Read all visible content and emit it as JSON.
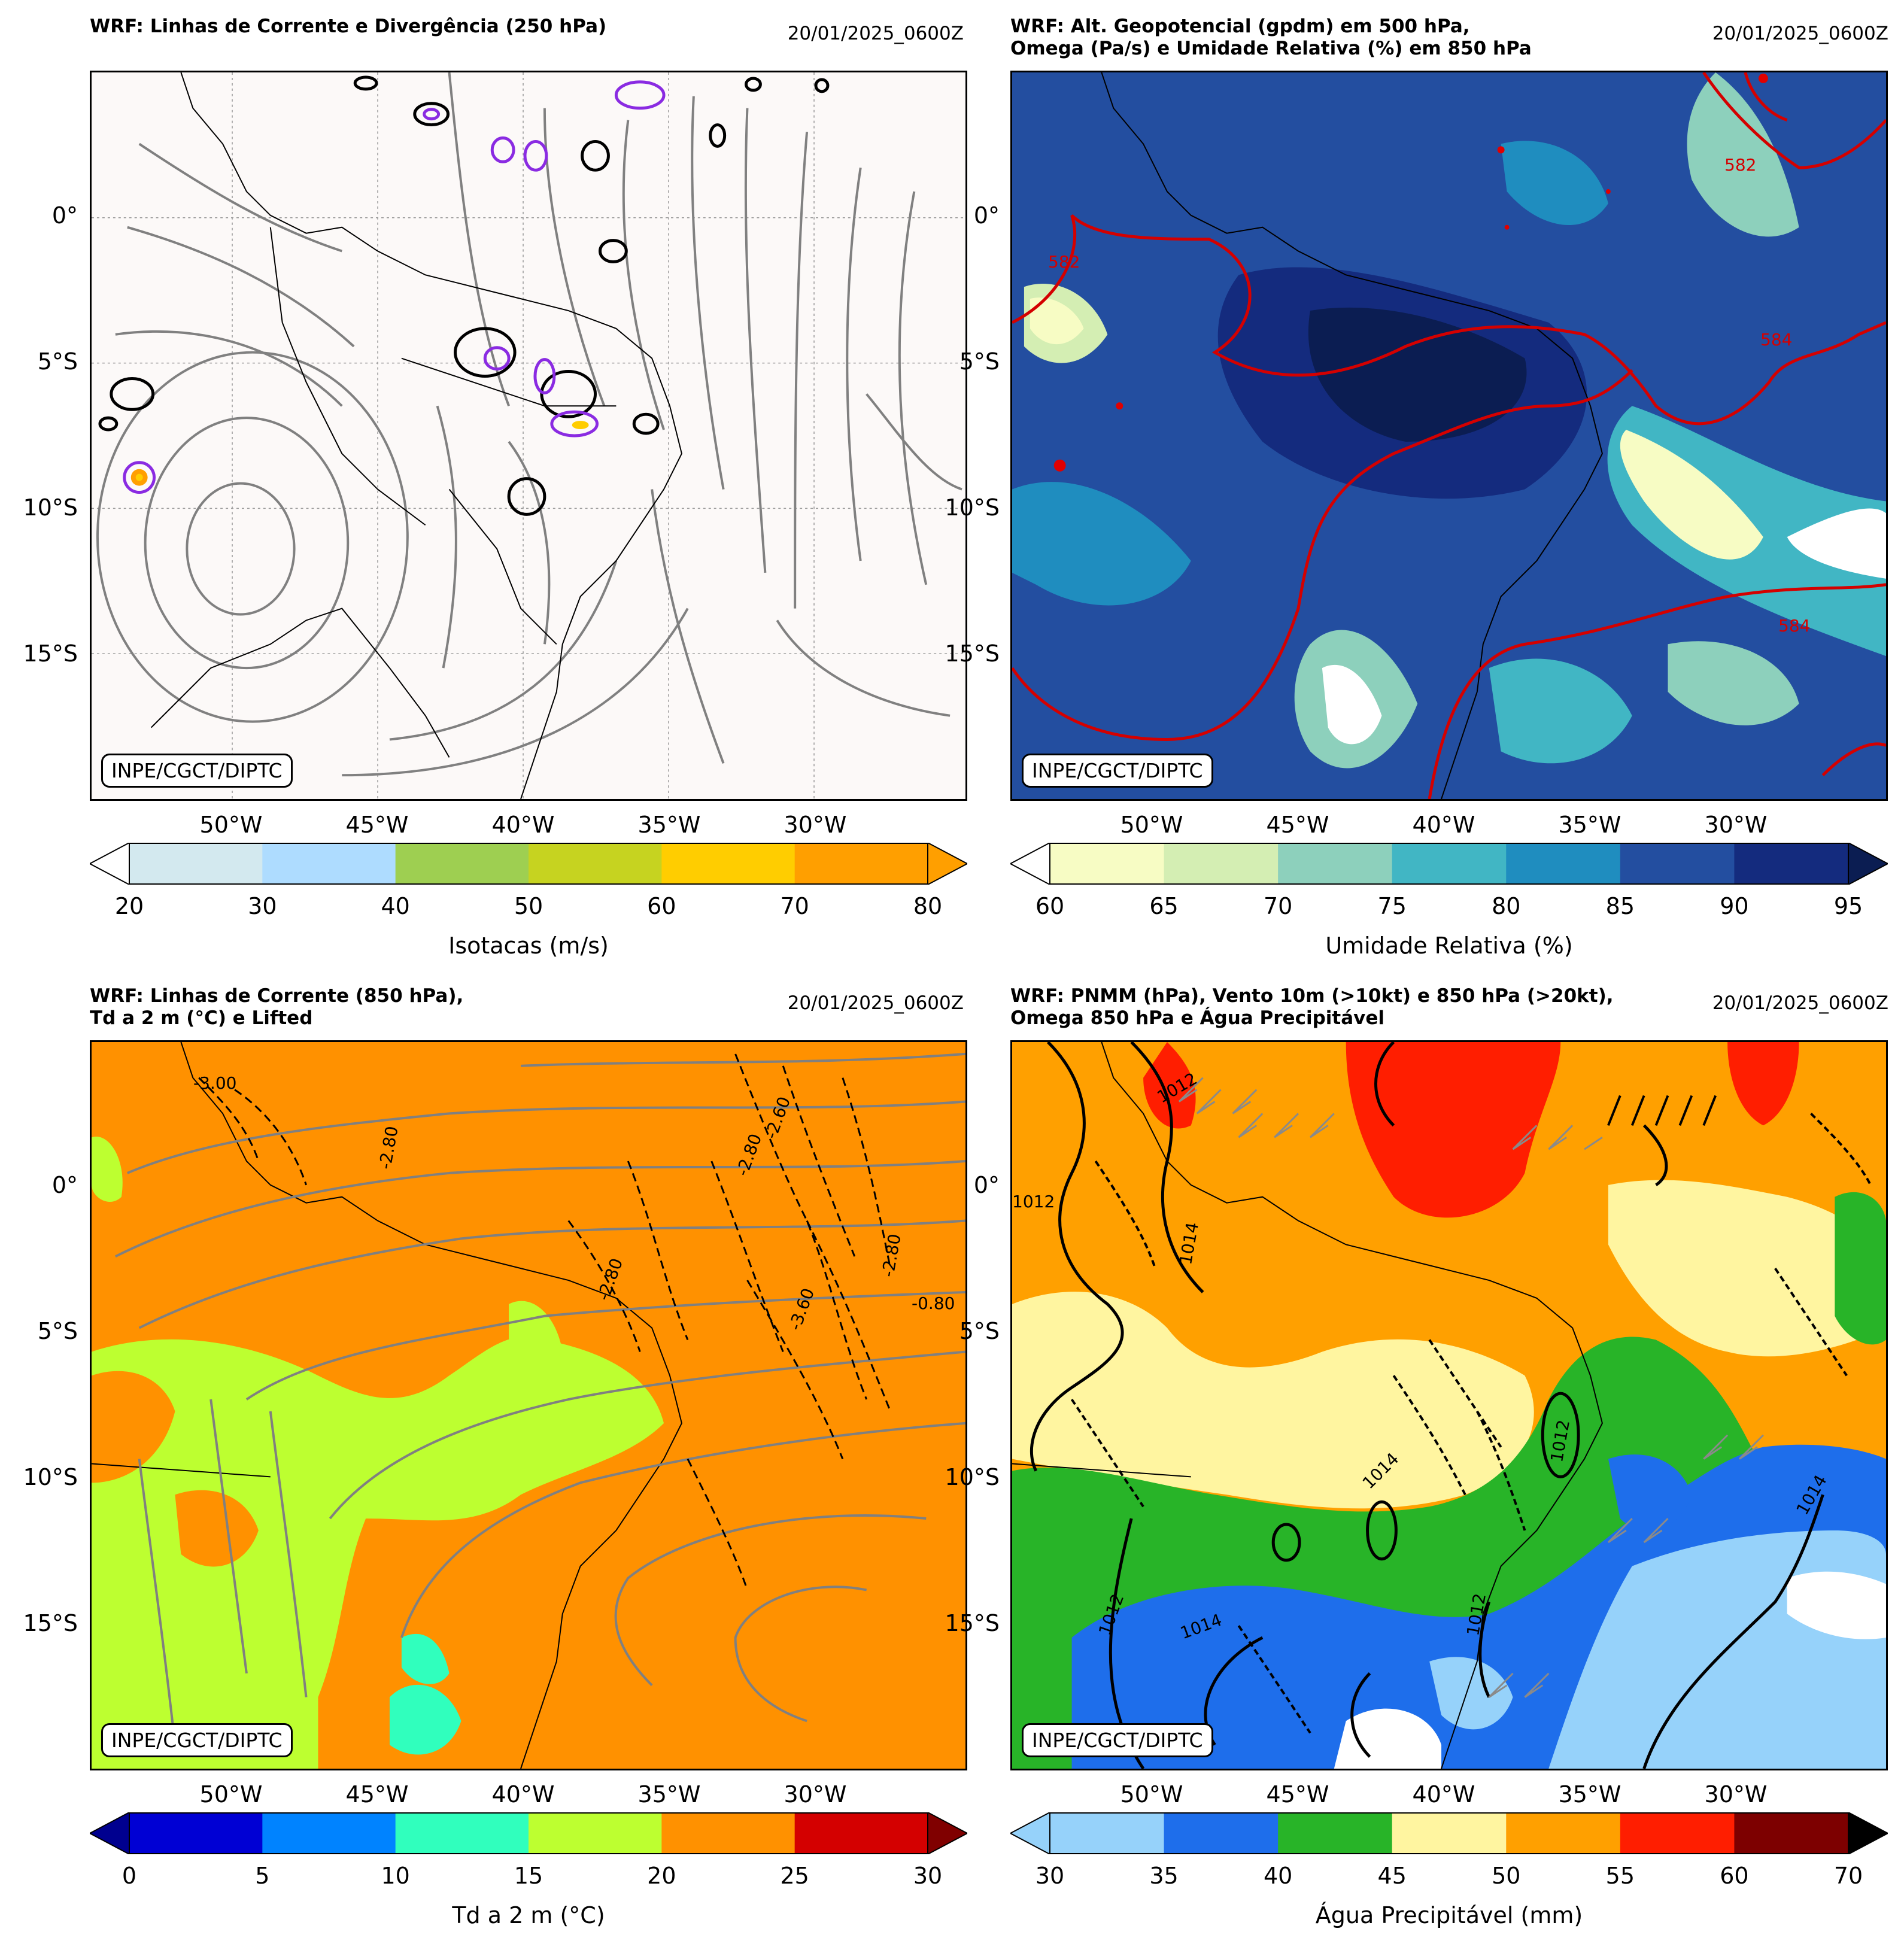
{
  "panels": [
    {
      "title": "WRF: Linhas de Corrente e Divergência (250 hPa)",
      "datetime": "20/01/2025_0600Z",
      "credit": "INPE/CGCT/DIPTC",
      "lat_labels": [
        "0°",
        "5°S",
        "10°S",
        "15°S"
      ],
      "lon_labels": [
        "50°W",
        "45°W",
        "40°W",
        "35°W",
        "30°W"
      ],
      "colorbar": {
        "label": "Isotacas (m/s)",
        "ticks": [
          "20",
          "30",
          "40",
          "50",
          "60",
          "70",
          "80"
        ],
        "colors": [
          "#d3e9ef",
          "#aedcff",
          "#9ecf51",
          "#c6d320",
          "#ffcd00",
          "#ff9f00"
        ],
        "extend_min_color": "#ffffff",
        "extend_max_color": "#ff9f00"
      }
    },
    {
      "title": "WRF: Alt. Geopotencial (gpdm) em 500 hPa,\nOmega (Pa/s) e Umidade Relativa (%) em 850 hPa",
      "datetime": "20/01/2025_0600Z",
      "credit": "INPE/CGCT/DIPTC",
      "lat_labels": [
        "0°",
        "5°S",
        "10°S",
        "15°S"
      ],
      "lon_labels": [
        "50°W",
        "45°W",
        "40°W",
        "35°W",
        "30°W"
      ],
      "contour_labels": [
        "582",
        "584",
        "584",
        "582"
      ],
      "colorbar": {
        "label": "Umidade Relativa (%)",
        "ticks": [
          "60",
          "65",
          "70",
          "75",
          "80",
          "85",
          "90",
          "95"
        ],
        "colors": [
          "#f7fcc4",
          "#d4eeb3",
          "#8dd0bc",
          "#41b6c4",
          "#1f8dbf",
          "#234ea0",
          "#142b7e"
        ],
        "extend_min_color": "#ffffff",
        "extend_max_color": "#0b1d52"
      }
    },
    {
      "title": "WRF: Linhas de Corrente (850 hPa),\nTd a 2 m (°C) e Lifted",
      "datetime": "20/01/2025_0600Z",
      "credit": "INPE/CGCT/DIPTC",
      "lat_labels": [
        "0°",
        "5°S",
        "10°S",
        "15°S"
      ],
      "lon_labels": [
        "50°W",
        "45°W",
        "40°W",
        "35°W",
        "30°W"
      ],
      "contour_labels": [
        "-2.80",
        "-3.00",
        "-2.80",
        "-2.60",
        "-2.80",
        "-3.60",
        "-2.80",
        "-0.80"
      ],
      "colorbar": {
        "label": "Td a 2 m (°C)",
        "ticks": [
          "0",
          "5",
          "10",
          "15",
          "20",
          "25",
          "30"
        ],
        "colors": [
          "#0000d4",
          "#0083ff",
          "#30ffbd",
          "#bdff30",
          "#ff9100",
          "#d40000"
        ],
        "extend_min_color": "#00008f",
        "extend_max_color": "#800000"
      }
    },
    {
      "title": "WRF: PNMM (hPa), Vento 10m (>10kt) e 850 hPa (>20kt),\nOmega 850 hPa e Água Precipitável",
      "datetime": "20/01/2025_0600Z",
      "credit": "INPE/CGCT/DIPTC",
      "lat_labels": [
        "0°",
        "5°S",
        "10°S",
        "15°S"
      ],
      "lon_labels": [
        "50°W",
        "45°W",
        "40°W",
        "35°W",
        "30°W"
      ],
      "contour_labels": [
        "1012",
        "1012",
        "1014",
        "1012",
        "1014",
        "1012",
        "1014",
        "1012",
        "1014"
      ],
      "colorbar": {
        "label": "Água Precipitável (mm)",
        "ticks": [
          "30",
          "35",
          "40",
          "45",
          "50",
          "55",
          "60",
          "70"
        ],
        "colors": [
          "#96d2fa",
          "#1e6eeb",
          "#28b428",
          "#fff5a0",
          "#ffa000",
          "#ff1e00",
          "#7d0000"
        ],
        "extend_min_color": "#96d2fa",
        "extend_max_color": "#000000"
      }
    }
  ]
}
